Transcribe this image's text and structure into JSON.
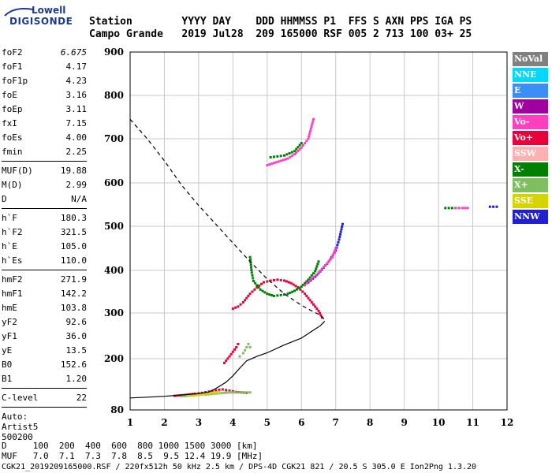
{
  "logo": {
    "line1": "Lowell",
    "line2": "DIGISONDE"
  },
  "header": {
    "row1": "Station        YYYY DAY    DDD HHMMSS P1  FFS S AXN PPS IGA PS",
    "row2": "Campo Grande   2019 Jul28  209 165000 RSF 005 2 713 100 03+ 25"
  },
  "params": [
    {
      "name": "foF2",
      "value": "6.675",
      "italic": true
    },
    {
      "name": "foF1",
      "value": "4.17"
    },
    {
      "name": "foF1p",
      "value": "4.23"
    },
    {
      "name": "foE",
      "value": "3.16"
    },
    {
      "name": "foEp",
      "value": "3.11"
    },
    {
      "name": "fxI",
      "value": "7.15"
    },
    {
      "name": "foEs",
      "value": "4.00"
    },
    {
      "name": "fmin",
      "value": "2.25"
    },
    {
      "sep": true
    },
    {
      "name": "MUF(D)",
      "value": "19.88"
    },
    {
      "name": "M(D)",
      "value": "2.99"
    },
    {
      "name": "D",
      "value": "N/A"
    },
    {
      "sep": true
    },
    {
      "name": "h`F",
      "value": "180.3"
    },
    {
      "name": "h`F2",
      "value": "321.5"
    },
    {
      "name": "h`E",
      "value": "105.0"
    },
    {
      "name": "h`Es",
      "value": "110.0"
    },
    {
      "sep": true
    },
    {
      "name": "hmF2",
      "value": "271.9"
    },
    {
      "name": "hmF1",
      "value": "142.2"
    },
    {
      "name": "hmE",
      "value": "103.8"
    },
    {
      "name": "yF2",
      "value": "92.6"
    },
    {
      "name": "yF1",
      "value": "36.0"
    },
    {
      "name": "yE",
      "value": "13.5"
    },
    {
      "name": "B0",
      "value": "152.6"
    },
    {
      "name": "B1",
      "value": "1.20"
    },
    {
      "sep": true
    },
    {
      "name": "C-level",
      "value": "22"
    },
    {
      "sep": true
    }
  ],
  "auto": {
    "line1": "Auto:",
    "line2": "Artist5",
    "line3": "500200"
  },
  "bottom": {
    "row1": "D     100  200  400  600  800 1000 1500 3000 [km]",
    "row2": "MUF   7.0  7.1  7.3  7.8  8.5  9.5 12.4 19.9 [MHz]",
    "row3": "CGK21_2019209165000.RSF / 220fx512h 50 kHz 2.5 km / DPS-4D CGK21 821 / 20.5 S 305.0 E Ion2Png 1.3.20"
  },
  "legend": [
    {
      "label": "NoVal",
      "color": "#808080"
    },
    {
      "label": "NNE",
      "color": "#00d8ff"
    },
    {
      "label": "E",
      "color": "#3a8ef6"
    },
    {
      "label": "W",
      "color": "#a000a0"
    },
    {
      "label": "Vo-",
      "color": "#ff3fbf"
    },
    {
      "label": "Vo+",
      "color": "#e8003a"
    },
    {
      "label": "SSW",
      "color": "#ffb0b0"
    },
    {
      "label": "X-",
      "color": "#008000"
    },
    {
      "label": "X+",
      "color": "#7fbf5f"
    },
    {
      "label": "SSE",
      "color": "#d4d400"
    },
    {
      "label": "NNW",
      "color": "#2020d0"
    }
  ],
  "chart_data": {
    "type": "scatter",
    "xlim": [
      1,
      12
    ],
    "ylim": [
      80,
      900
    ],
    "x_ticks": [
      1,
      2,
      3,
      4,
      5,
      6,
      7,
      8,
      9,
      10,
      11,
      12
    ],
    "y_ticks": [
      80,
      200,
      300,
      400,
      500,
      600,
      700,
      800,
      900
    ],
    "grid": true,
    "series": [
      {
        "color": "#e8003a",
        "style": "dots",
        "points": [
          [
            4.0,
            310
          ],
          [
            4.15,
            315
          ],
          [
            4.3,
            325
          ],
          [
            4.5,
            345
          ],
          [
            4.7,
            360
          ],
          [
            4.9,
            372
          ],
          [
            5.1,
            376
          ],
          [
            5.3,
            378
          ],
          [
            5.5,
            376
          ],
          [
            5.7,
            370
          ],
          [
            5.9,
            360
          ],
          [
            6.1,
            345
          ],
          [
            6.3,
            325
          ],
          [
            6.5,
            305
          ],
          [
            6.6,
            290
          ]
        ]
      },
      {
        "color": "#008000",
        "style": "dots",
        "points": [
          [
            4.5,
            430
          ],
          [
            4.55,
            395
          ],
          [
            4.6,
            375
          ],
          [
            4.8,
            355
          ],
          [
            5.0,
            345
          ],
          [
            5.2,
            340
          ],
          [
            5.4,
            342
          ],
          [
            5.6,
            345
          ],
          [
            5.8,
            352
          ],
          [
            6.0,
            362
          ],
          [
            6.2,
            378
          ],
          [
            6.4,
            398
          ],
          [
            6.5,
            420
          ]
        ]
      },
      {
        "color": "#2020d0",
        "style": "dots",
        "points": [
          [
            6.2,
            372
          ],
          [
            6.4,
            385
          ],
          [
            6.6,
            402
          ],
          [
            6.8,
            420
          ],
          [
            7.0,
            445
          ],
          [
            7.1,
            470
          ],
          [
            7.2,
            505
          ]
        ]
      },
      {
        "color": "#ff3fbf",
        "style": "dots",
        "points": [
          [
            6.1,
            365
          ],
          [
            6.3,
            380
          ],
          [
            6.5,
            395
          ],
          [
            6.7,
            412
          ],
          [
            6.9,
            430
          ],
          [
            7.0,
            450
          ]
        ]
      },
      {
        "color": "#ff3fbf",
        "style": "dots",
        "points": [
          [
            5.0,
            640
          ],
          [
            5.2,
            645
          ],
          [
            5.4,
            650
          ],
          [
            5.6,
            655
          ],
          [
            5.8,
            665
          ],
          [
            6.0,
            680
          ],
          [
            6.2,
            700
          ],
          [
            6.35,
            745
          ]
        ]
      },
      {
        "color": "#008000",
        "style": "dots",
        "points": [
          [
            5.1,
            658
          ],
          [
            5.3,
            660
          ],
          [
            5.5,
            662
          ],
          [
            5.8,
            672
          ],
          [
            6.0,
            690
          ]
        ]
      },
      {
        "color": "#e8003a",
        "style": "dots",
        "points": [
          [
            3.75,
            190
          ],
          [
            3.8,
            195
          ],
          [
            3.9,
            205
          ],
          [
            4.0,
            215
          ],
          [
            4.1,
            225
          ],
          [
            4.15,
            232
          ]
        ]
      },
      {
        "color": "#7fbf5f",
        "style": "dots",
        "points": [
          [
            4.2,
            205
          ],
          [
            4.3,
            212
          ],
          [
            4.4,
            225
          ],
          [
            4.45,
            232
          ],
          [
            4.5,
            225
          ]
        ]
      },
      {
        "color": "#e8003a",
        "style": "dots",
        "points": [
          [
            2.3,
            113
          ],
          [
            2.6,
            115
          ],
          [
            2.9,
            118
          ],
          [
            3.1,
            120
          ],
          [
            3.3,
            123
          ],
          [
            3.5,
            126
          ],
          [
            3.7,
            128
          ],
          [
            3.9,
            125
          ],
          [
            4.1,
            122
          ],
          [
            4.4,
            120
          ]
        ]
      },
      {
        "color": "#7fbf5f",
        "style": "dots",
        "points": [
          [
            2.5,
            112
          ],
          [
            2.8,
            114
          ],
          [
            3.0,
            117
          ],
          [
            3.2,
            116
          ],
          [
            3.6,
            119
          ],
          [
            3.9,
            121
          ],
          [
            4.2,
            121
          ],
          [
            4.5,
            121
          ]
        ]
      },
      {
        "color": "#d4d400",
        "style": "dots",
        "points": [
          [
            2.7,
            113
          ],
          [
            3.0,
            115
          ],
          [
            3.3,
            119
          ],
          [
            3.6,
            122
          ]
        ]
      },
      {
        "color": "#008000",
        "style": "dots",
        "points": [
          [
            10.2,
            542
          ],
          [
            10.4,
            542
          ],
          [
            10.6,
            542
          ]
        ]
      },
      {
        "color": "#ff3fbf",
        "style": "dots",
        "points": [
          [
            10.5,
            542
          ],
          [
            10.7,
            542
          ],
          [
            10.85,
            542
          ]
        ]
      },
      {
        "color": "#2020d0",
        "style": "dots",
        "points": [
          [
            11.5,
            545
          ],
          [
            11.6,
            545
          ],
          [
            11.7,
            545
          ]
        ]
      },
      {
        "color": "#000000",
        "style": "line",
        "points": [
          [
            1.0,
            108
          ],
          [
            1.5,
            110
          ],
          [
            2.0,
            112
          ],
          [
            2.5,
            115
          ],
          [
            3.0,
            118
          ],
          [
            3.3,
            122
          ],
          [
            3.5,
            130
          ],
          [
            3.8,
            145
          ],
          [
            4.0,
            160
          ],
          [
            4.2,
            178
          ],
          [
            4.4,
            195
          ],
          [
            4.7,
            205
          ],
          [
            5.0,
            213
          ],
          [
            5.5,
            230
          ],
          [
            6.0,
            245
          ],
          [
            6.3,
            260
          ],
          [
            6.55,
            272
          ],
          [
            6.68,
            282
          ]
        ]
      },
      {
        "color": "#000000",
        "style": "dashed",
        "points": [
          [
            1.0,
            745
          ],
          [
            1.5,
            700
          ],
          [
            2.0,
            650
          ],
          [
            2.5,
            595
          ],
          [
            3.0,
            548
          ],
          [
            3.5,
            505
          ],
          [
            4.0,
            462
          ],
          [
            4.5,
            420
          ],
          [
            5.0,
            380
          ],
          [
            5.5,
            345
          ],
          [
            6.0,
            318
          ],
          [
            6.3,
            305
          ],
          [
            6.55,
            295
          ],
          [
            6.68,
            285
          ]
        ]
      }
    ]
  }
}
